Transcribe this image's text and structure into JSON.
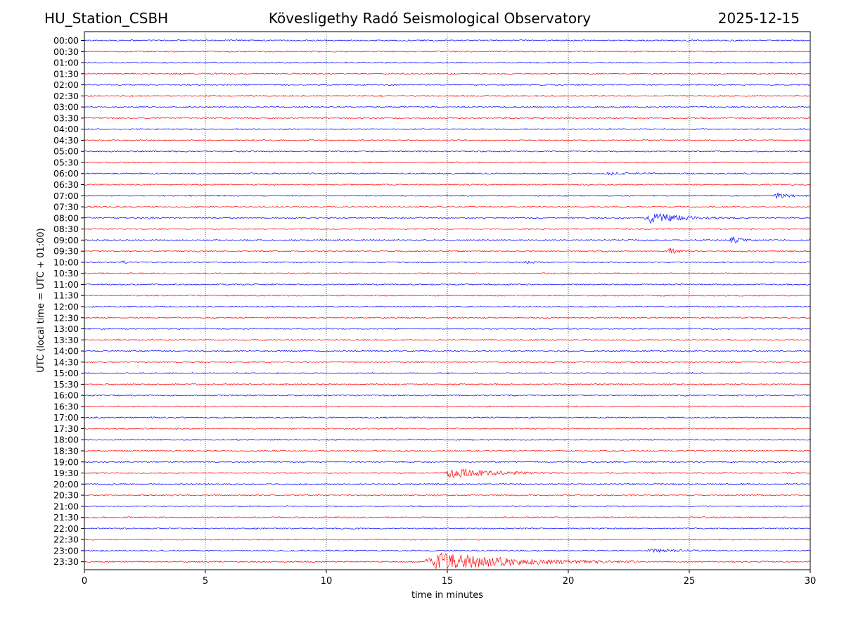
{
  "header": {
    "station": "HU_Station_CSBH",
    "title": "Kövesligethy Radó Seismological Observatory",
    "date": "2025-12-15"
  },
  "chart_data": {
    "type": "line",
    "title": "Kövesligethy Radó Seismological Observatory",
    "xlabel": "time in minutes",
    "ylabel": "UTC (local time = UTC + 01:00)",
    "xlim": [
      0,
      30
    ],
    "x_ticks": [
      0,
      5,
      10,
      15,
      20,
      25,
      30
    ],
    "grid": "vertical dotted lines at x ticks",
    "series_colors": [
      "#0000ff",
      "#ff0000"
    ],
    "rows": [
      "00:00",
      "00:30",
      "01:00",
      "01:30",
      "02:00",
      "02:30",
      "03:00",
      "03:30",
      "04:00",
      "04:30",
      "05:00",
      "05:30",
      "06:00",
      "06:30",
      "07:00",
      "07:30",
      "08:00",
      "08:30",
      "09:00",
      "09:30",
      "10:00",
      "10:30",
      "11:00",
      "11:30",
      "12:00",
      "12:30",
      "13:00",
      "13:30",
      "14:00",
      "14:30",
      "15:00",
      "15:30",
      "16:00",
      "16:30",
      "17:00",
      "17:30",
      "18:00",
      "18:30",
      "19:00",
      "19:30",
      "20:00",
      "20:30",
      "21:00",
      "21:30",
      "22:00",
      "22:30",
      "23:00",
      "23:30"
    ],
    "events": [
      {
        "row": "06:00",
        "start": 21.5,
        "end": 24.0,
        "amp": 0.25
      },
      {
        "row": "07:00",
        "start": 28.5,
        "end": 30.0,
        "amp": 0.55
      },
      {
        "row": "07:30",
        "start": 0.0,
        "end": 0.8,
        "amp": 0.2
      },
      {
        "row": "08:00",
        "start": 2.6,
        "end": 3.0,
        "amp": 0.3
      },
      {
        "row": "08:00",
        "start": 23.1,
        "end": 27.0,
        "amp": 1.0
      },
      {
        "row": "09:00",
        "start": 26.7,
        "end": 27.6,
        "amp": 0.85
      },
      {
        "row": "09:30",
        "start": 24.1,
        "end": 25.0,
        "amp": 0.8
      },
      {
        "row": "10:00",
        "start": 1.5,
        "end": 2.0,
        "amp": 0.35
      },
      {
        "row": "10:00",
        "start": 18.2,
        "end": 19.0,
        "amp": 0.3
      },
      {
        "row": "16:00",
        "start": 24.6,
        "end": 25.2,
        "amp": 0.15
      },
      {
        "row": "19:30",
        "start": 14.9,
        "end": 19.5,
        "amp": 1.0
      },
      {
        "row": "19:30",
        "start": 29.1,
        "end": 29.6,
        "amp": 0.2
      },
      {
        "row": "20:00",
        "start": 1.1,
        "end": 1.7,
        "amp": 0.15
      },
      {
        "row": "23:00",
        "start": 23.3,
        "end": 26.0,
        "amp": 0.35
      },
      {
        "row": "23:30",
        "start": 14.1,
        "end": 23.0,
        "amp": 1.8
      }
    ]
  }
}
